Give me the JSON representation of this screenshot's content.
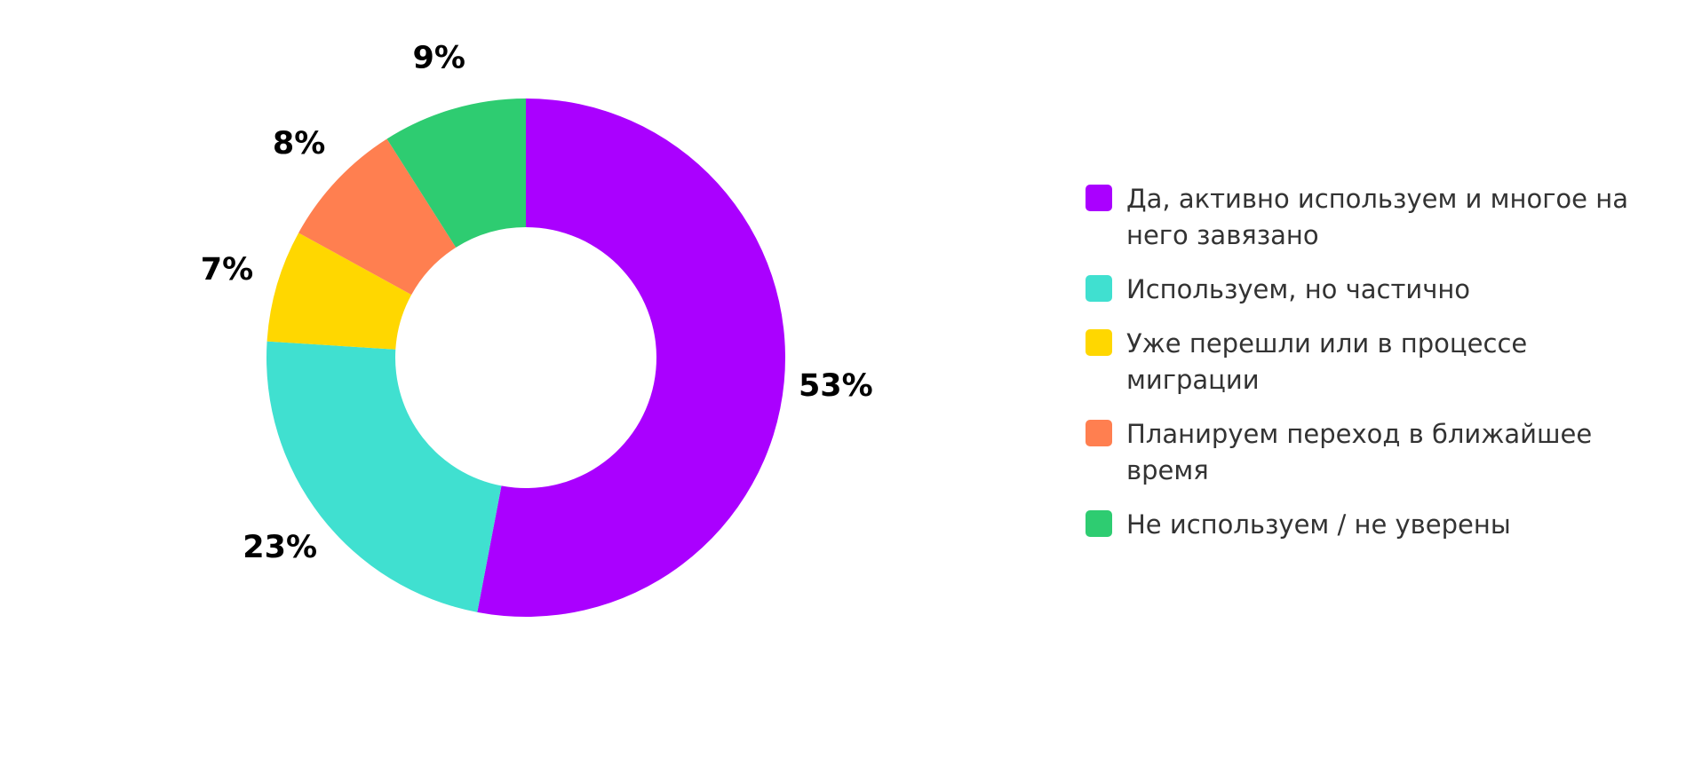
{
  "chart_data": {
    "type": "donut",
    "categories": [
      "Да, активно используем и многое на него завязано",
      "Используем, но частично",
      "Уже перешли или в процессе миграции",
      "Планируем переход в ближайшее время",
      "Не используем / не уверены"
    ],
    "values": [
      53,
      23,
      7,
      8,
      9
    ],
    "value_labels": [
      "53%",
      "23%",
      "7%",
      "8%",
      "9%"
    ],
    "colors": [
      "#aa00ff",
      "#40e0d0",
      "#ffd700",
      "#ff7f50",
      "#2ecc71"
    ],
    "legend": "right"
  }
}
